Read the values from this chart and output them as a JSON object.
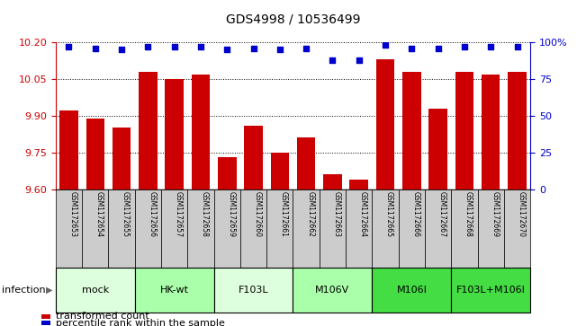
{
  "title": "GDS4998 / 10536499",
  "samples": [
    "GSM1172653",
    "GSM1172654",
    "GSM1172655",
    "GSM1172656",
    "GSM1172657",
    "GSM1172658",
    "GSM1172659",
    "GSM1172660",
    "GSM1172661",
    "GSM1172662",
    "GSM1172663",
    "GSM1172664",
    "GSM1172665",
    "GSM1172666",
    "GSM1172667",
    "GSM1172668",
    "GSM1172669",
    "GSM1172670"
  ],
  "bar_values": [
    9.92,
    9.89,
    9.85,
    10.08,
    10.05,
    10.07,
    9.73,
    9.86,
    9.75,
    9.81,
    9.66,
    9.64,
    10.13,
    10.08,
    9.93,
    10.08,
    10.07,
    10.08
  ],
  "percentile_values": [
    97,
    96,
    95,
    97,
    97,
    97,
    95,
    96,
    95,
    96,
    88,
    88,
    98,
    96,
    96,
    97,
    97,
    97
  ],
  "ylim_left": [
    9.6,
    10.2
  ],
  "ylim_right": [
    0,
    100
  ],
  "yticks_left": [
    9.6,
    9.75,
    9.9,
    10.05,
    10.2
  ],
  "yticks_right": [
    0,
    25,
    50,
    75,
    100
  ],
  "bar_color": "#cc0000",
  "dot_color": "#0000cc",
  "bar_width": 0.7,
  "groups": [
    {
      "label": "mock",
      "start": 0,
      "end": 2,
      "color": "#ddffdd"
    },
    {
      "label": "HK-wt",
      "start": 3,
      "end": 5,
      "color": "#aaffaa"
    },
    {
      "label": "F103L",
      "start": 6,
      "end": 8,
      "color": "#ddffdd"
    },
    {
      "label": "M106V",
      "start": 9,
      "end": 11,
      "color": "#aaffaa"
    },
    {
      "label": "M106I",
      "start": 12,
      "end": 14,
      "color": "#44dd44"
    },
    {
      "label": "F103L+M106I",
      "start": 15,
      "end": 17,
      "color": "#44dd44"
    }
  ],
  "infection_label": "infection",
  "legend_bar_label": "transformed count",
  "legend_dot_label": "percentile rank within the sample",
  "ylabel_right_color": "#0000cc",
  "ylabel_left_color": "#cc0000",
  "bg_sample_color": "#cccccc",
  "title_fontsize": 10,
  "axis_fontsize": 8,
  "sample_fontsize": 5.5,
  "group_fontsize": 8
}
